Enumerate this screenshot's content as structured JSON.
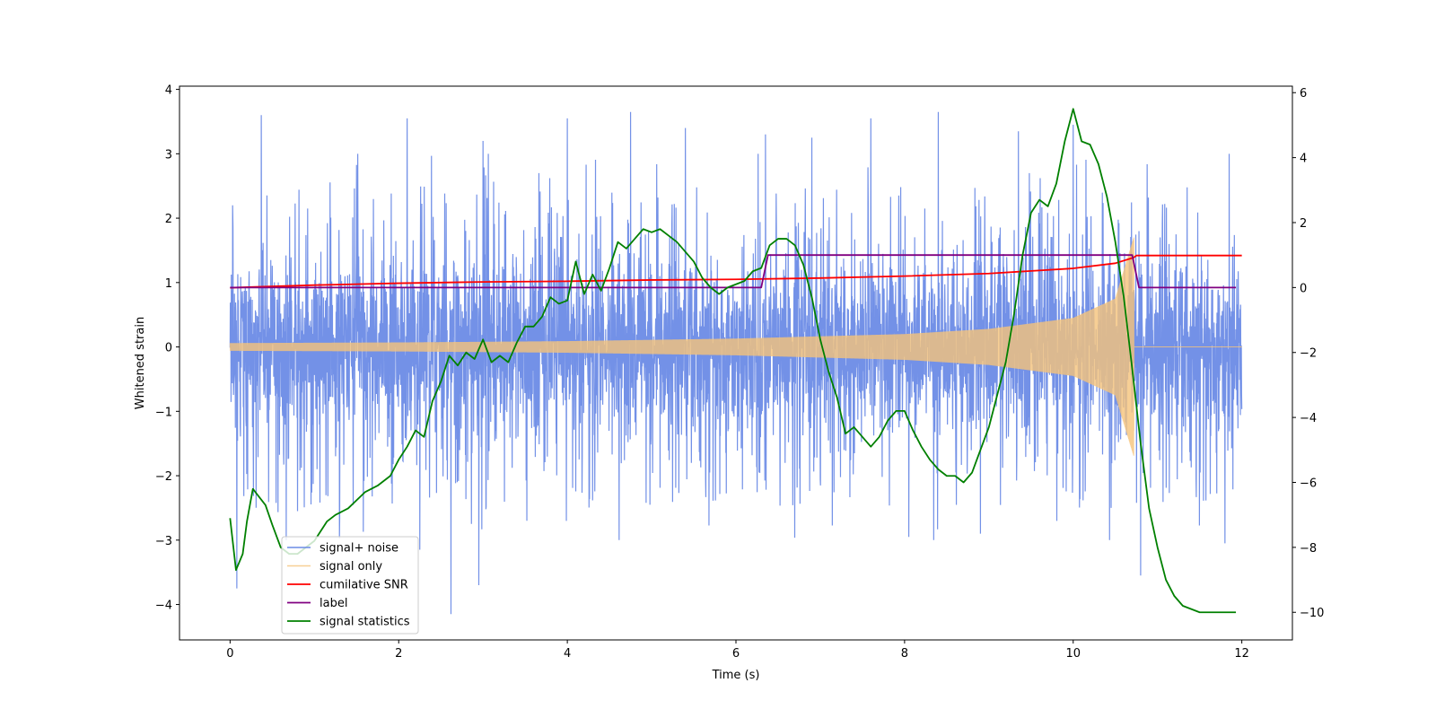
{
  "chart_data": {
    "type": "line",
    "title": "",
    "xlabel": "Time (s)",
    "ylabel": "Whitened strain",
    "ylabel_right": "",
    "xlim": [
      -0.6,
      12.6
    ],
    "ylim": [
      -4.55,
      4.05
    ],
    "ylim_right": [
      -10.85,
      6.2
    ],
    "x_ticks": [
      0,
      2,
      4,
      6,
      8,
      10,
      12
    ],
    "x_tick_labels": [
      "0",
      "2",
      "4",
      "6",
      "8",
      "10",
      "12"
    ],
    "y_ticks": [
      -4,
      -3,
      -2,
      -1,
      0,
      1,
      2,
      3,
      4
    ],
    "y_tick_labels": [
      "−4",
      "−3",
      "−2",
      "−1",
      "0",
      "1",
      "2",
      "3",
      "4"
    ],
    "y2_ticks": [
      -10,
      -8,
      -6,
      -4,
      -2,
      0,
      2,
      4,
      6
    ],
    "y2_tick_labels": [
      "−10",
      "−8",
      "−6",
      "−4",
      "−2",
      "0",
      "2",
      "4",
      "6"
    ],
    "grid": false,
    "legend_position": "lower-left",
    "series": [
      {
        "name": "signal+ noise",
        "axis": "left",
        "color": "#6b8be6",
        "style": "dense-noise",
        "x_range": [
          0,
          12
        ],
        "typical_envelope": [
          -1.6,
          1.6
        ],
        "peak_points": [
          [
            0.03,
            2.2
          ],
          [
            0.08,
            -3.75
          ],
          [
            0.37,
            3.6
          ],
          [
            0.8,
            -2.55
          ],
          [
            1.3,
            -2.65
          ],
          [
            2.1,
            3.55
          ],
          [
            2.25,
            -3.15
          ],
          [
            2.62,
            -4.15
          ],
          [
            2.95,
            -3.7
          ],
          [
            3.0,
            3.2
          ],
          [
            3.52,
            -2.7
          ],
          [
            4.0,
            3.55
          ],
          [
            4.75,
            3.65
          ],
          [
            4.98,
            -2.45
          ],
          [
            5.4,
            3.4
          ],
          [
            6.35,
            3.3
          ],
          [
            6.9,
            3.25
          ],
          [
            7.6,
            3.55
          ],
          [
            8.05,
            -2.95
          ],
          [
            8.4,
            3.65
          ],
          [
            8.9,
            -2.9
          ],
          [
            9.35,
            3.35
          ],
          [
            10.0,
            3.45
          ],
          [
            10.45,
            -2.5
          ],
          [
            10.8,
            -3.55
          ],
          [
            11.85,
            3.0
          ],
          [
            11.8,
            -3.05
          ]
        ]
      },
      {
        "name": "signal only",
        "axis": "left",
        "color": "#f5c37a",
        "style": "chirp",
        "x_range": [
          0,
          10.72
        ],
        "amplitude_points": [
          [
            0,
            0.06
          ],
          [
            2,
            0.07
          ],
          [
            4,
            0.09
          ],
          [
            6,
            0.13
          ],
          [
            8,
            0.2
          ],
          [
            9,
            0.28
          ],
          [
            10,
            0.45
          ],
          [
            10.5,
            0.75
          ],
          [
            10.72,
            1.7
          ]
        ],
        "after_merger": [
          [
            10.72,
            0
          ],
          [
            12,
            0
          ]
        ]
      },
      {
        "name": "cumilative SNR",
        "axis": "left",
        "color": "#ff0000",
        "style": "line",
        "x": [
          0,
          1,
          2,
          3,
          4,
          5,
          6,
          7,
          8,
          9,
          10,
          10.5,
          10.72,
          10.75,
          12
        ],
        "y": [
          0.92,
          0.96,
          0.99,
          1.01,
          1.02,
          1.04,
          1.05,
          1.07,
          1.1,
          1.14,
          1.22,
          1.3,
          1.39,
          1.42,
          1.42
        ]
      },
      {
        "name": "label",
        "axis": "right",
        "color": "#800080",
        "style": "step",
        "x": [
          0,
          6.3,
          6.38,
          10.7,
          10.78,
          11.93
        ],
        "y": [
          0,
          0,
          1,
          1,
          0,
          0
        ]
      },
      {
        "name": "signal statistics",
        "axis": "right",
        "color": "#008000",
        "style": "line",
        "x": [
          0.0,
          0.07,
          0.15,
          0.2,
          0.27,
          0.33,
          0.42,
          0.5,
          0.6,
          0.7,
          0.8,
          1.0,
          1.15,
          1.25,
          1.4,
          1.6,
          1.75,
          1.9,
          2.0,
          2.1,
          2.2,
          2.3,
          2.4,
          2.5,
          2.6,
          2.7,
          2.8,
          2.9,
          3.0,
          3.1,
          3.2,
          3.3,
          3.4,
          3.5,
          3.6,
          3.7,
          3.8,
          3.9,
          4.0,
          4.1,
          4.2,
          4.3,
          4.4,
          4.5,
          4.6,
          4.7,
          4.8,
          4.9,
          5.0,
          5.1,
          5.2,
          5.3,
          5.4,
          5.5,
          5.6,
          5.7,
          5.8,
          5.9,
          6.0,
          6.1,
          6.2,
          6.3,
          6.4,
          6.5,
          6.6,
          6.7,
          6.8,
          6.9,
          7.0,
          7.1,
          7.2,
          7.3,
          7.4,
          7.5,
          7.6,
          7.7,
          7.8,
          7.9,
          8.0,
          8.1,
          8.2,
          8.3,
          8.4,
          8.5,
          8.6,
          8.7,
          8.8,
          8.9,
          9.0,
          9.1,
          9.2,
          9.3,
          9.4,
          9.5,
          9.6,
          9.7,
          9.8,
          9.9,
          10.0,
          10.1,
          10.2,
          10.3,
          10.4,
          10.5,
          10.6,
          10.7,
          10.8,
          10.9,
          11.0,
          11.1,
          11.2,
          11.3,
          11.4,
          11.5,
          11.6,
          11.8,
          11.93
        ],
        "y": [
          -7.1,
          -8.7,
          -8.2,
          -7.2,
          -6.2,
          -6.4,
          -6.7,
          -7.3,
          -8.0,
          -8.2,
          -8.2,
          -7.8,
          -7.2,
          -7.0,
          -6.8,
          -6.3,
          -6.1,
          -5.8,
          -5.3,
          -4.9,
          -4.4,
          -4.6,
          -3.5,
          -2.9,
          -2.1,
          -2.4,
          -2.0,
          -2.2,
          -1.6,
          -2.3,
          -2.1,
          -2.3,
          -1.7,
          -1.2,
          -1.2,
          -0.9,
          -0.3,
          -0.5,
          -0.4,
          0.8,
          -0.2,
          0.4,
          -0.1,
          0.6,
          1.4,
          1.2,
          1.5,
          1.8,
          1.7,
          1.8,
          1.6,
          1.4,
          1.1,
          0.8,
          0.3,
          0.0,
          -0.2,
          0.0,
          0.1,
          0.2,
          0.5,
          0.6,
          1.3,
          1.5,
          1.5,
          1.3,
          0.7,
          -0.3,
          -1.6,
          -2.6,
          -3.4,
          -4.5,
          -4.3,
          -4.6,
          -4.9,
          -4.6,
          -4.1,
          -3.8,
          -3.8,
          -4.4,
          -4.9,
          -5.3,
          -5.6,
          -5.8,
          -5.8,
          -6.0,
          -5.7,
          -5.0,
          -4.3,
          -3.3,
          -2.3,
          -0.8,
          1.0,
          2.3,
          2.7,
          2.5,
          3.2,
          4.5,
          5.5,
          4.5,
          4.4,
          3.8,
          2.8,
          1.4,
          -0.3,
          -2.5,
          -4.8,
          -6.8,
          -8.0,
          -9.0,
          -9.5,
          -9.8,
          -9.9,
          -10.0,
          -10.0,
          -10.0,
          -10.0
        ]
      }
    ]
  }
}
